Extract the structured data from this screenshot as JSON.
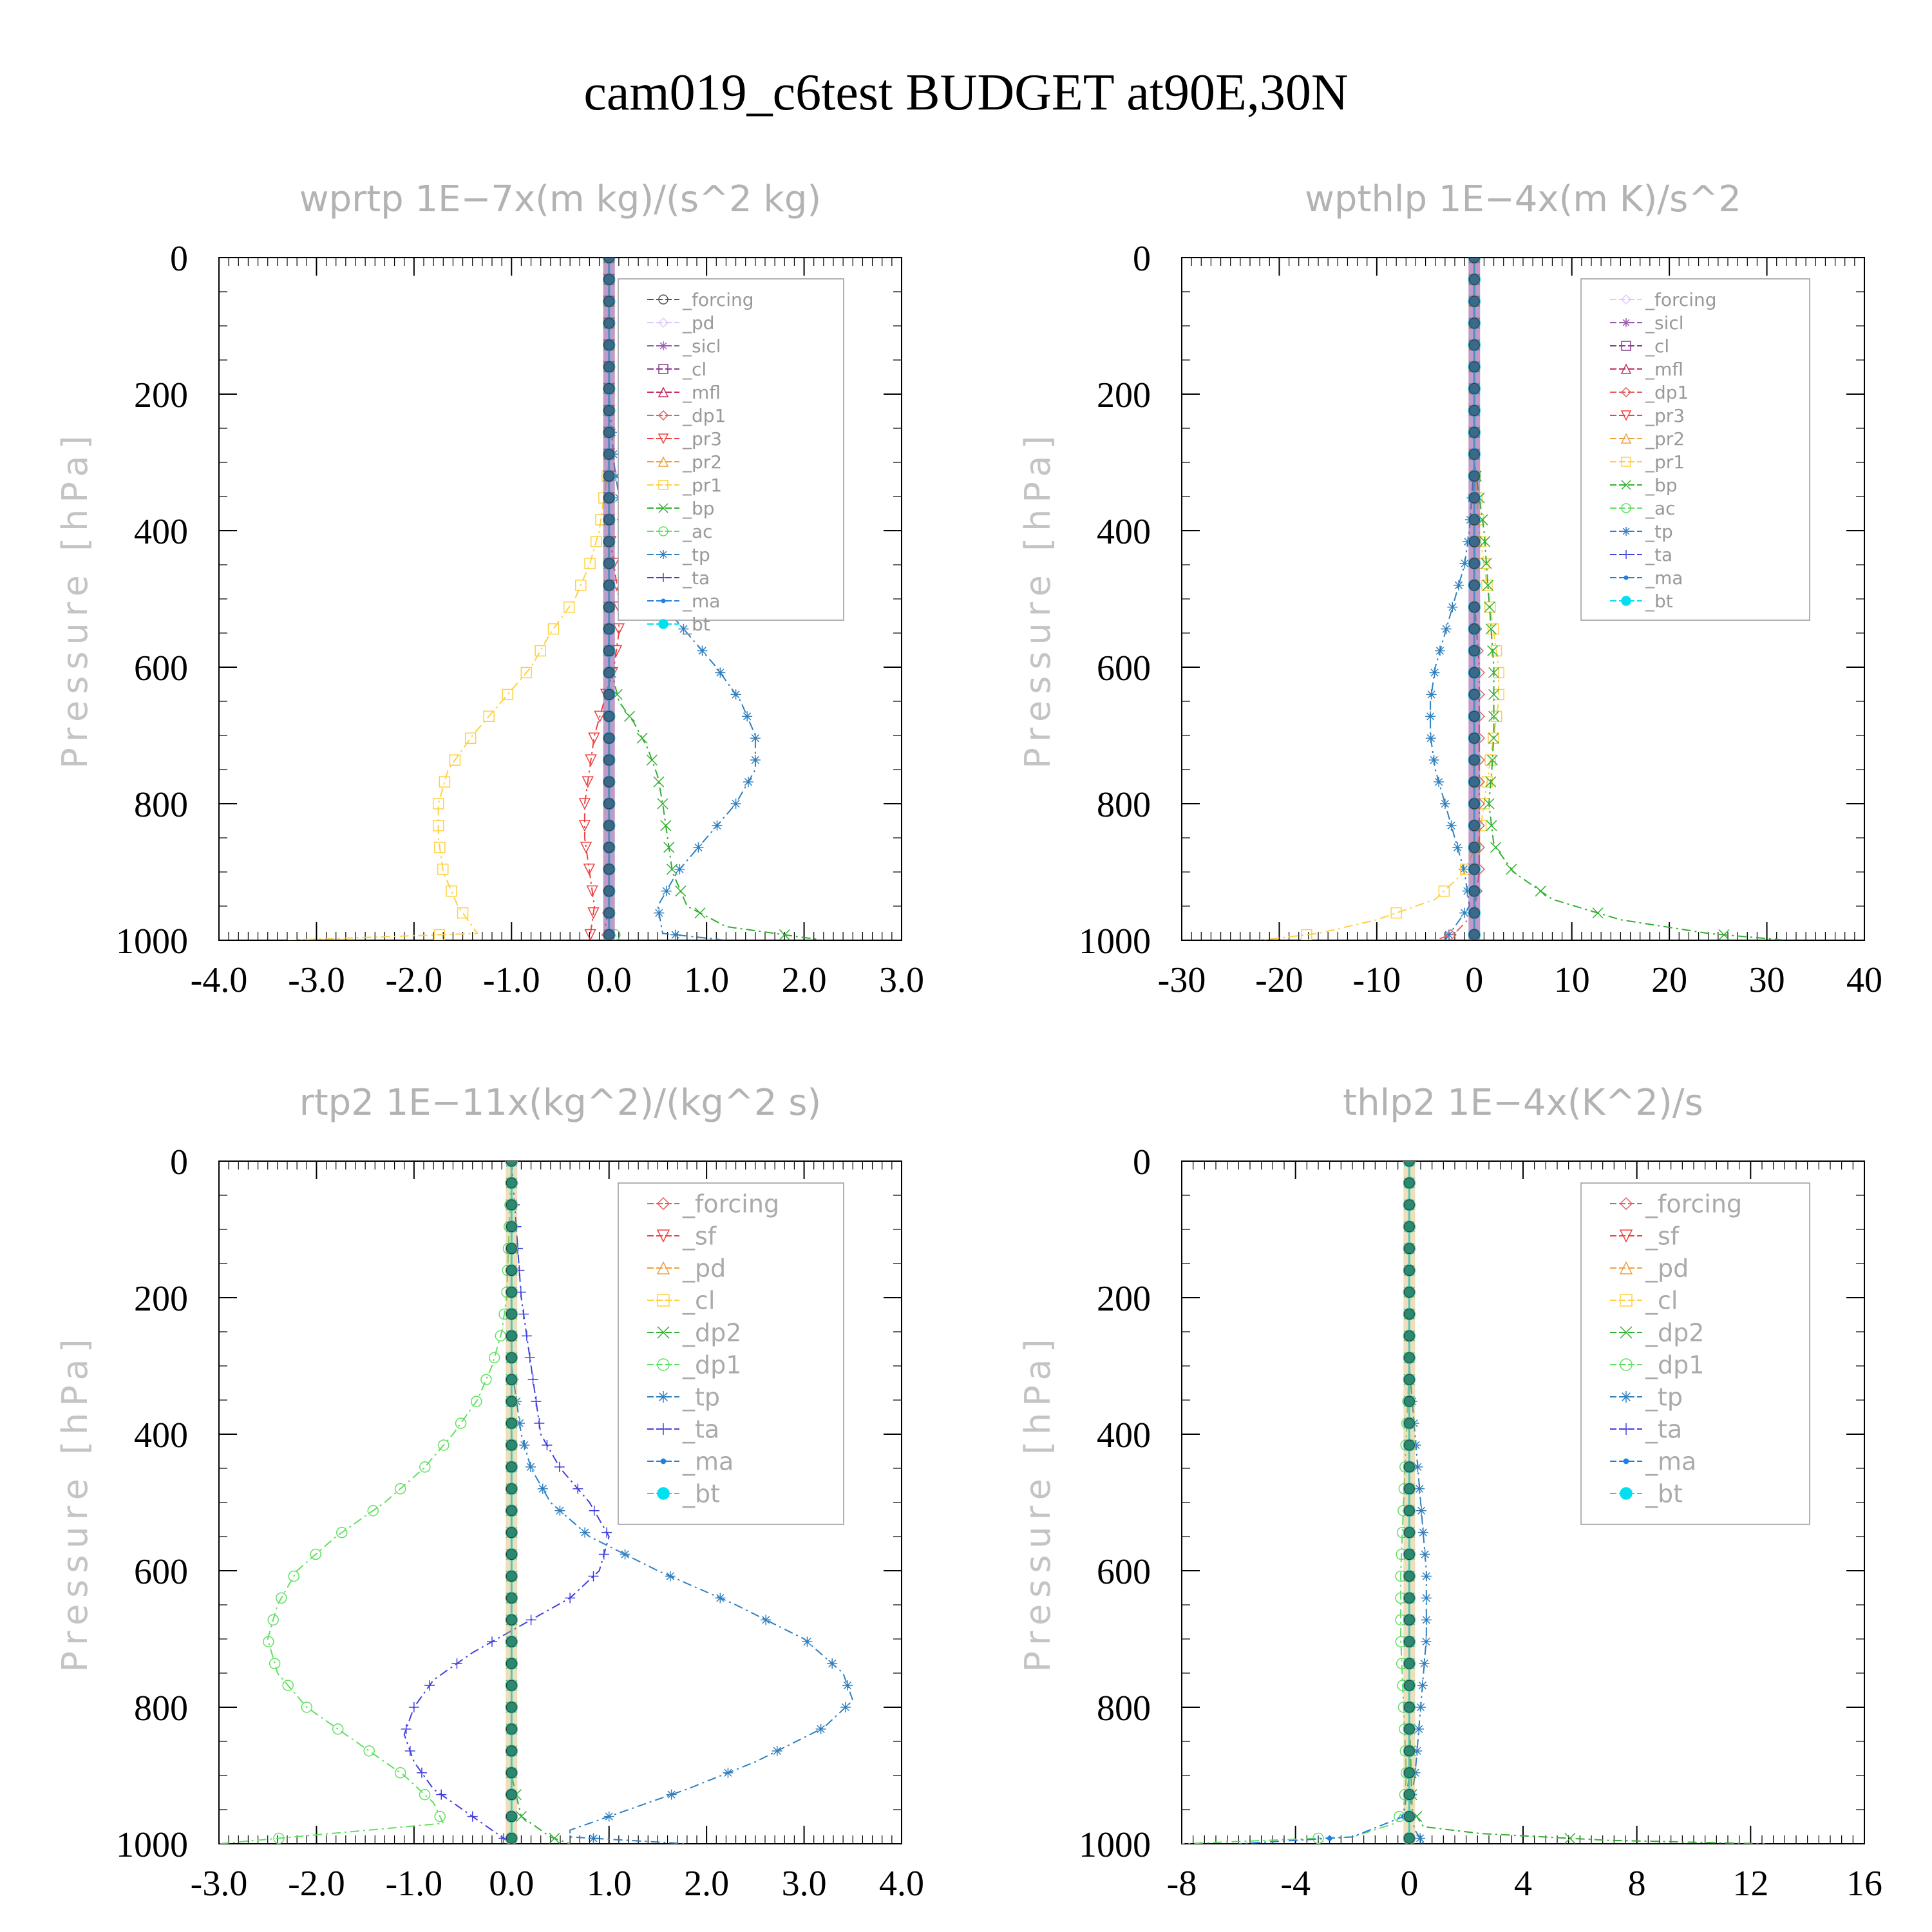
{
  "title": "cam019_c6test  BUDGET at90E,30N",
  "colors": {
    "forcing": "#555555",
    "pd": "#e0c8ff",
    "sicl": "#9a5ab0",
    "cl": "#8a3a8a",
    "mfl": "#c83060",
    "dp1": "#e06060",
    "pr3": "#f04040",
    "pr2": "#f0a040",
    "pr1": "#ffd040",
    "bp": "#30b030",
    "ac": "#60e060",
    "tp": "#3080c0",
    "ta": "#4040e0",
    "ma": "#2080e0",
    "bt": "#00e0f0"
  },
  "chart_data": [
    {
      "type": "line",
      "title": "wprtp  1E−7x(m kg)/(s^2 kg)",
      "ylabel": "Pressure [hPa]",
      "xlim": [
        -4,
        3
      ],
      "ylim": [
        0,
        1000
      ],
      "xticks": [
        -4,
        -3,
        -2,
        -1,
        0,
        1,
        2,
        3
      ],
      "xtick_labels": [
        "-4.0",
        "-3.0",
        "-2.0",
        "-1.0",
        "0.0",
        "1.0",
        "2.0",
        "3.0"
      ],
      "yticks": [
        0,
        200,
        400,
        600,
        800,
        1000
      ],
      "ytick_labels": [
        "0",
        "200",
        "400",
        "600",
        "800",
        "1000"
      ],
      "legend": [
        "_forcing",
        "_pd",
        "_sicl",
        "_cl",
        "_mfl",
        "_dp1",
        "_pr3",
        "_pr2",
        "_pr1",
        "_bp",
        "_ac",
        "_tp",
        "_ta",
        "_ma",
        "_bt"
      ],
      "legend_keys": [
        "forcing",
        "pd",
        "sicl",
        "cl",
        "mfl",
        "dp1",
        "pr3",
        "pr2",
        "pr1",
        "bp",
        "ac",
        "tp",
        "ta",
        "ma",
        "bt"
      ],
      "legend_position": "top-right",
      "series": [
        {
          "key": "pr1",
          "x": [
            0,
            0,
            0,
            0,
            -0.05,
            -0.1,
            -0.2,
            -0.35,
            -0.6,
            -0.8,
            -1.1,
            -1.4,
            -1.65,
            -1.75,
            -1.75,
            -1.7,
            -1.55,
            -1.4,
            -1.35,
            -3.3
          ],
          "y": [
            0,
            100,
            200,
            300,
            350,
            400,
            450,
            500,
            550,
            600,
            650,
            700,
            750,
            800,
            850,
            900,
            950,
            980,
            990,
            1000
          ]
        },
        {
          "key": "tp",
          "x": [
            0,
            0,
            0,
            0.05,
            0.1,
            0.15,
            0.3,
            0.5,
            0.8,
            1.1,
            1.35,
            1.5,
            1.5,
            1.3,
            1.0,
            0.7,
            0.5,
            0.55,
            1.2
          ],
          "y": [
            0,
            100,
            200,
            300,
            350,
            400,
            450,
            500,
            550,
            600,
            650,
            700,
            750,
            800,
            850,
            900,
            950,
            990,
            1000
          ]
        },
        {
          "key": "bp",
          "x": [
            0,
            0,
            0,
            0,
            0.05,
            0.1,
            0.25,
            0.4,
            0.5,
            0.55,
            0.6,
            0.65,
            0.8,
            1.2,
            2.2
          ],
          "y": [
            0,
            200,
            500,
            600,
            620,
            650,
            680,
            720,
            760,
            800,
            850,
            900,
            950,
            980,
            1000
          ]
        },
        {
          "key": "pr3",
          "x": [
            0,
            0,
            0.1,
            0.1,
            0.05,
            -0.05,
            -0.15,
            -0.2,
            -0.25,
            -0.25,
            -0.2,
            -0.15,
            -0.2
          ],
          "y": [
            0,
            400,
            500,
            550,
            600,
            650,
            700,
            750,
            800,
            850,
            900,
            950,
            1000
          ]
        },
        {
          "key": "ac",
          "x": [
            0,
            0,
            0,
            0,
            0,
            0.1
          ],
          "y": [
            0,
            200,
            600,
            900,
            980,
            1000
          ]
        },
        {
          "key": "dp1",
          "x": [
            0,
            0,
            0,
            0,
            -0.05,
            0.1
          ],
          "y": [
            0,
            400,
            800,
            950,
            990,
            1000
          ]
        },
        {
          "key": "forcing",
          "x": [
            0,
            0
          ],
          "y": [
            0,
            1000
          ]
        },
        {
          "key": "bt",
          "x": [
            0,
            0
          ],
          "y": [
            0,
            1000
          ]
        }
      ]
    },
    {
      "type": "line",
      "title": "wpthlp  1E−4x(m K)/s^2",
      "ylabel": "Pressure [hPa]",
      "xlim": [
        -30,
        40
      ],
      "ylim": [
        0,
        1000
      ],
      "xticks": [
        -30,
        -20,
        -10,
        0,
        10,
        20,
        30,
        40
      ],
      "xtick_labels": [
        "-30",
        "-20",
        "-10",
        "0",
        "10",
        "20",
        "30",
        "40"
      ],
      "yticks": [
        0,
        200,
        400,
        600,
        800,
        1000
      ],
      "ytick_labels": [
        "0",
        "200",
        "400",
        "600",
        "800",
        "1000"
      ],
      "legend": [
        "_forcing",
        "_sicl",
        "_cl",
        "_mfl",
        "_dp1",
        "_pr3",
        "_pr2",
        "_pr1",
        "_bp",
        "_ac",
        "_tp",
        "_ta",
        "_ma",
        "_bt"
      ],
      "legend_keys": [
        "pd",
        "sicl",
        "cl",
        "mfl",
        "dp1",
        "pr3",
        "pr2",
        "pr1",
        "bp",
        "ac",
        "tp",
        "ta",
        "ma",
        "bt"
      ],
      "legend_position": "top-right",
      "series": [
        {
          "key": "tp",
          "x": [
            0,
            0,
            -0.5,
            -1,
            -2,
            -3,
            -4,
            -4.5,
            -4.5,
            -4,
            -3,
            -2,
            -1,
            -0.5,
            -3
          ],
          "y": [
            0,
            300,
            400,
            450,
            500,
            550,
            600,
            650,
            700,
            750,
            800,
            850,
            900,
            950,
            1000
          ]
        },
        {
          "key": "pr1",
          "x": [
            0,
            0,
            0.5,
            1,
            1.5,
            2,
            2.5,
            2.5,
            2,
            1.5,
            1,
            0.5,
            -1,
            -4,
            -10,
            -16,
            -22
          ],
          "y": [
            0,
            300,
            400,
            450,
            500,
            550,
            600,
            650,
            700,
            750,
            800,
            850,
            900,
            940,
            970,
            990,
            1000
          ]
        },
        {
          "key": "bp",
          "x": [
            0,
            0,
            1,
            1.5,
            2,
            2,
            2,
            1.8,
            1.5,
            2,
            4,
            8,
            15,
            24,
            32
          ],
          "y": [
            0,
            300,
            400,
            500,
            600,
            650,
            700,
            750,
            800,
            860,
            900,
            940,
            970,
            990,
            1000
          ]
        },
        {
          "key": "dp1",
          "x": [
            0,
            0,
            0.5,
            0.5,
            0,
            -2,
            -4
          ],
          "y": [
            0,
            500,
            600,
            900,
            960,
            990,
            1000
          ]
        },
        {
          "key": "pd",
          "x": [
            0,
            0
          ],
          "y": [
            0,
            1000
          ]
        },
        {
          "key": "bt",
          "x": [
            0,
            0
          ],
          "y": [
            0,
            1000
          ]
        }
      ]
    },
    {
      "type": "line",
      "title": "rtp2  1E−11x(kg^2)/(kg^2 s)",
      "ylabel": "Pressure [hPa]",
      "xlim": [
        -3,
        4
      ],
      "ylim": [
        0,
        1000
      ],
      "xticks": [
        -3,
        -2,
        -1,
        0,
        1,
        2,
        3,
        4
      ],
      "xtick_labels": [
        "-3.0",
        "-2.0",
        "-1.0",
        "0.0",
        "1.0",
        "2.0",
        "3.0",
        "4.0"
      ],
      "yticks": [
        0,
        200,
        400,
        600,
        800,
        1000
      ],
      "ytick_labels": [
        "0",
        "200",
        "400",
        "600",
        "800",
        "1000"
      ],
      "legend": [
        "_forcing",
        "_sf",
        "_pd",
        "_cl",
        "_dp2",
        "_dp1",
        "_tp",
        "_ta",
        "_ma",
        "_bt"
      ],
      "legend_keys": [
        "dp1",
        "pr3",
        "pr2",
        "pr1",
        "bp",
        "ac",
        "tp",
        "ta",
        "ma",
        "bt"
      ],
      "legend_position": "top-right",
      "series": [
        {
          "key": "ac",
          "x": [
            0,
            -0.05,
            -0.1,
            -0.2,
            -0.35,
            -0.6,
            -0.9,
            -1.3,
            -1.8,
            -2.2,
            -2.4,
            -2.5,
            -2.4,
            -2.1,
            -1.6,
            -1.1,
            -0.8,
            -0.7,
            -3
          ],
          "y": [
            0,
            200,
            250,
            300,
            350,
            400,
            450,
            500,
            550,
            600,
            650,
            700,
            750,
            800,
            850,
            900,
            940,
            970,
            1000
          ]
        },
        {
          "key": "ta",
          "x": [
            0,
            0.1,
            0.2,
            0.3,
            0.5,
            0.8,
            1.0,
            0.9,
            0.6,
            0.1,
            -0.4,
            -0.8,
            -1.0,
            -1.1,
            -1.0,
            -0.8,
            -0.5,
            -0.2,
            0
          ],
          "y": [
            0,
            200,
            300,
            400,
            450,
            500,
            550,
            600,
            640,
            680,
            720,
            760,
            800,
            840,
            880,
            920,
            950,
            980,
            1000
          ]
        },
        {
          "key": "tp",
          "x": [
            0,
            0,
            0.1,
            0.2,
            0.4,
            0.8,
            1.5,
            2.3,
            3.0,
            3.4,
            3.5,
            3.2,
            2.5,
            1.8,
            1.2,
            0.8,
            0.6,
            0.6,
            1.8
          ],
          "y": [
            0,
            300,
            400,
            450,
            500,
            550,
            600,
            650,
            700,
            750,
            790,
            830,
            880,
            920,
            950,
            970,
            980,
            990,
            1000
          ]
        },
        {
          "key": "bp",
          "x": [
            0,
            0,
            0,
            0.1,
            0.4,
            0.6
          ],
          "y": [
            0,
            600,
            900,
            960,
            990,
            1000
          ]
        },
        {
          "key": "dp1",
          "x": [
            0,
            0
          ],
          "y": [
            0,
            1000
          ]
        },
        {
          "key": "bt",
          "x": [
            0,
            0
          ],
          "y": [
            0,
            1000
          ]
        }
      ]
    },
    {
      "type": "line",
      "title": "thlp2  1E−4x(K^2)/s",
      "ylabel": "Pressure [hPa]",
      "xlim": [
        -8,
        16
      ],
      "ylim": [
        0,
        1000
      ],
      "xticks": [
        -8,
        -4,
        0,
        4,
        8,
        12,
        16
      ],
      "xtick_labels": [
        "-8",
        "-4",
        "0",
        "4",
        "8",
        "12",
        "16"
      ],
      "yticks": [
        0,
        200,
        400,
        600,
        800,
        1000
      ],
      "ytick_labels": [
        "0",
        "200",
        "400",
        "600",
        "800",
        "1000"
      ],
      "legend": [
        "_forcing",
        "_sf",
        "_pd",
        "_cl",
        "_dp2",
        "_dp1",
        "_tp",
        "_ta",
        "_ma",
        "_bt"
      ],
      "legend_keys": [
        "dp1",
        "pr3",
        "pr2",
        "pr1",
        "bp",
        "ac",
        "tp",
        "ta",
        "ma",
        "bt"
      ],
      "legend_position": "top-right",
      "series": [
        {
          "key": "ac",
          "x": [
            0,
            0,
            -0.1,
            -0.2,
            -0.3,
            -0.3,
            -0.2,
            -0.1,
            -0.2,
            -0.5,
            -2,
            -8
          ],
          "y": [
            0,
            300,
            400,
            500,
            600,
            700,
            800,
            900,
            950,
            970,
            990,
            1000
          ]
        },
        {
          "key": "tp",
          "x": [
            0,
            0,
            0.2,
            0.4,
            0.6,
            0.6,
            0.4,
            0.2,
            0,
            0.2,
            0.5
          ],
          "y": [
            0,
            300,
            400,
            500,
            600,
            700,
            800,
            900,
            950,
            980,
            1000
          ]
        },
        {
          "key": "bp",
          "x": [
            0,
            0,
            0.1,
            0.5,
            2.5,
            7,
            12.5
          ],
          "y": [
            0,
            800,
            950,
            975,
            985,
            995,
            1000
          ]
        },
        {
          "key": "ma",
          "x": [
            0,
            0,
            -0.2,
            -2,
            -6
          ],
          "y": [
            0,
            900,
            960,
            990,
            1000
          ]
        },
        {
          "key": "dp1",
          "x": [
            0,
            0
          ],
          "y": [
            0,
            1000
          ]
        },
        {
          "key": "bt",
          "x": [
            0,
            0
          ],
          "y": [
            0,
            1000
          ]
        }
      ]
    }
  ]
}
